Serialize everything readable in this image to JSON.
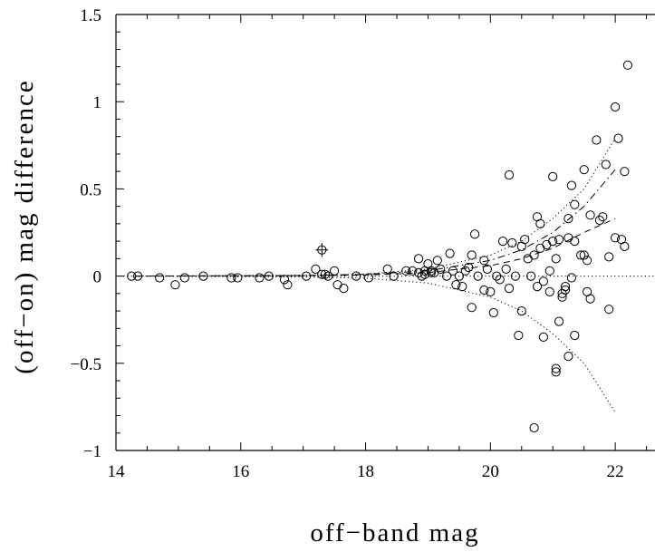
{
  "chart_data": {
    "type": "scatter",
    "title": "",
    "xlabel": "off−band mag",
    "ylabel": "(off−on) mag difference",
    "xlim": [
      14,
      23
    ],
    "ylim": [
      -1,
      1.5
    ],
    "x_ticks": [
      14,
      16,
      18,
      20,
      22
    ],
    "x_tick_labels": [
      "14",
      "16",
      "18",
      "20",
      "22"
    ],
    "y_ticks": [
      -1,
      -0.5,
      0,
      0.5,
      1,
      1.5
    ],
    "y_tick_labels": [
      "−1",
      "−0.5",
      "0",
      "0.5",
      "1",
      "1.5"
    ],
    "grid": false,
    "series": [
      {
        "marker": "circle",
        "points": [
          [
            14.25,
            0.0
          ],
          [
            14.35,
            0.0
          ],
          [
            14.7,
            -0.01
          ],
          [
            14.95,
            -0.05
          ],
          [
            15.1,
            -0.01
          ],
          [
            15.4,
            0.0
          ],
          [
            15.85,
            -0.01
          ],
          [
            15.95,
            -0.01
          ],
          [
            16.3,
            -0.01
          ],
          [
            16.45,
            0.0
          ],
          [
            16.7,
            -0.02
          ],
          [
            16.75,
            -0.05
          ],
          [
            17.05,
            0.0
          ],
          [
            17.2,
            0.04
          ],
          [
            17.3,
            0.01
          ],
          [
            17.35,
            0.01
          ],
          [
            17.4,
            0.0
          ],
          [
            17.5,
            0.03
          ],
          [
            17.55,
            -0.05
          ],
          [
            17.65,
            -0.07
          ],
          [
            17.85,
            0.0
          ],
          [
            18.05,
            -0.01
          ],
          [
            18.35,
            0.04
          ],
          [
            18.45,
            0.0
          ],
          [
            18.65,
            0.03
          ],
          [
            18.75,
            0.03
          ],
          [
            18.85,
            0.1
          ],
          [
            18.85,
            0.02
          ],
          [
            18.9,
            0.0
          ],
          [
            18.95,
            0.03
          ],
          [
            18.95,
            0.01
          ],
          [
            19.0,
            0.07
          ],
          [
            19.05,
            0.02
          ],
          [
            19.05,
            0.03
          ],
          [
            19.1,
            0.02
          ],
          [
            19.15,
            0.09
          ],
          [
            19.2,
            0.04
          ],
          [
            19.3,
            0.0
          ],
          [
            19.35,
            0.13
          ],
          [
            19.4,
            0.03
          ],
          [
            19.45,
            -0.05
          ],
          [
            19.5,
            0.0
          ],
          [
            19.55,
            -0.06
          ],
          [
            19.6,
            0.03
          ],
          [
            19.65,
            0.05
          ],
          [
            19.7,
            0.12
          ],
          [
            19.7,
            -0.18
          ],
          [
            19.75,
            0.24
          ],
          [
            19.8,
            0.0
          ],
          [
            19.9,
            0.09
          ],
          [
            19.9,
            -0.08
          ],
          [
            19.95,
            0.04
          ],
          [
            20.0,
            -0.09
          ],
          [
            20.05,
            -0.21
          ],
          [
            20.1,
            0.0
          ],
          [
            20.15,
            -0.02
          ],
          [
            20.2,
            0.2
          ],
          [
            20.25,
            0.04
          ],
          [
            20.3,
            0.58
          ],
          [
            20.3,
            -0.07
          ],
          [
            20.35,
            0.19
          ],
          [
            20.4,
            0.0
          ],
          [
            20.45,
            -0.34
          ],
          [
            20.5,
            0.17
          ],
          [
            20.5,
            -0.2
          ],
          [
            20.55,
            0.21
          ],
          [
            20.6,
            0.1
          ],
          [
            20.65,
            0.0
          ],
          [
            20.7,
            -0.87
          ],
          [
            20.7,
            0.12
          ],
          [
            20.75,
            0.34
          ],
          [
            20.75,
            -0.06
          ],
          [
            20.8,
            0.3
          ],
          [
            20.8,
            0.16
          ],
          [
            20.85,
            -0.03
          ],
          [
            20.85,
            -0.35
          ],
          [
            20.9,
            0.18
          ],
          [
            20.95,
            0.03
          ],
          [
            20.95,
            -0.09
          ],
          [
            21.0,
            0.57
          ],
          [
            21.0,
            0.2
          ],
          [
            21.05,
            0.1
          ],
          [
            21.05,
            -0.53
          ],
          [
            21.05,
            -0.55
          ],
          [
            21.1,
            0.21
          ],
          [
            21.1,
            -0.26
          ],
          [
            21.15,
            -0.1
          ],
          [
            21.15,
            -0.12
          ],
          [
            21.2,
            -0.06
          ],
          [
            21.2,
            -0.08
          ],
          [
            21.25,
            0.33
          ],
          [
            21.25,
            0.22
          ],
          [
            21.25,
            -0.46
          ],
          [
            21.3,
            0.52
          ],
          [
            21.3,
            -0.01
          ],
          [
            21.35,
            0.41
          ],
          [
            21.35,
            0.2
          ],
          [
            21.35,
            -0.34
          ],
          [
            21.45,
            0.12
          ],
          [
            21.5,
            0.61
          ],
          [
            21.5,
            0.12
          ],
          [
            21.55,
            0.09
          ],
          [
            21.55,
            -0.09
          ],
          [
            21.6,
            0.35
          ],
          [
            21.6,
            -0.13
          ],
          [
            21.7,
            0.78
          ],
          [
            21.75,
            0.32
          ],
          [
            21.8,
            0.34
          ],
          [
            21.85,
            0.64
          ],
          [
            21.9,
            0.11
          ],
          [
            21.9,
            -0.19
          ],
          [
            22.0,
            0.97
          ],
          [
            22.0,
            0.22
          ],
          [
            22.05,
            0.79
          ],
          [
            22.1,
            0.21
          ],
          [
            22.15,
            0.6
          ],
          [
            22.15,
            0.17
          ],
          [
            22.2,
            1.21
          ]
        ]
      }
    ],
    "special_point": {
      "x": 17.3,
      "y": 0.15,
      "marker": "circle-with-errorbars",
      "xerr": 0.1,
      "yerr": 0.04
    },
    "curves": [
      {
        "style": "dotted",
        "x": [
          14.3,
          17,
          18,
          19,
          20,
          20.5,
          21,
          21.5,
          22
        ],
        "y": [
          0,
          0.005,
          0.012,
          0.04,
          0.12,
          0.2,
          0.33,
          0.5,
          0.79
        ]
      },
      {
        "style": "dotted",
        "x": [
          14.3,
          17,
          18,
          19,
          20,
          20.5,
          21,
          21.5,
          22
        ],
        "y": [
          0,
          -0.005,
          -0.012,
          -0.04,
          -0.12,
          -0.2,
          -0.33,
          -0.5,
          -0.78
        ]
      },
      {
        "style": "dash-dot",
        "x": [
          14.3,
          17,
          18,
          19,
          20,
          20.5,
          21,
          21.5,
          22
        ],
        "y": [
          0,
          0.003,
          0.01,
          0.03,
          0.09,
          0.15,
          0.25,
          0.4,
          0.61
        ]
      },
      {
        "style": "dashed",
        "x": [
          14.3,
          17,
          18,
          19,
          20,
          20.5,
          21,
          21.5,
          22
        ],
        "y": [
          0,
          0.002,
          0.007,
          0.02,
          0.06,
          0.1,
          0.16,
          0.25,
          0.33
        ]
      },
      {
        "style": "dotted",
        "x": [
          14,
          23
        ],
        "y": [
          0,
          0
        ]
      }
    ]
  }
}
